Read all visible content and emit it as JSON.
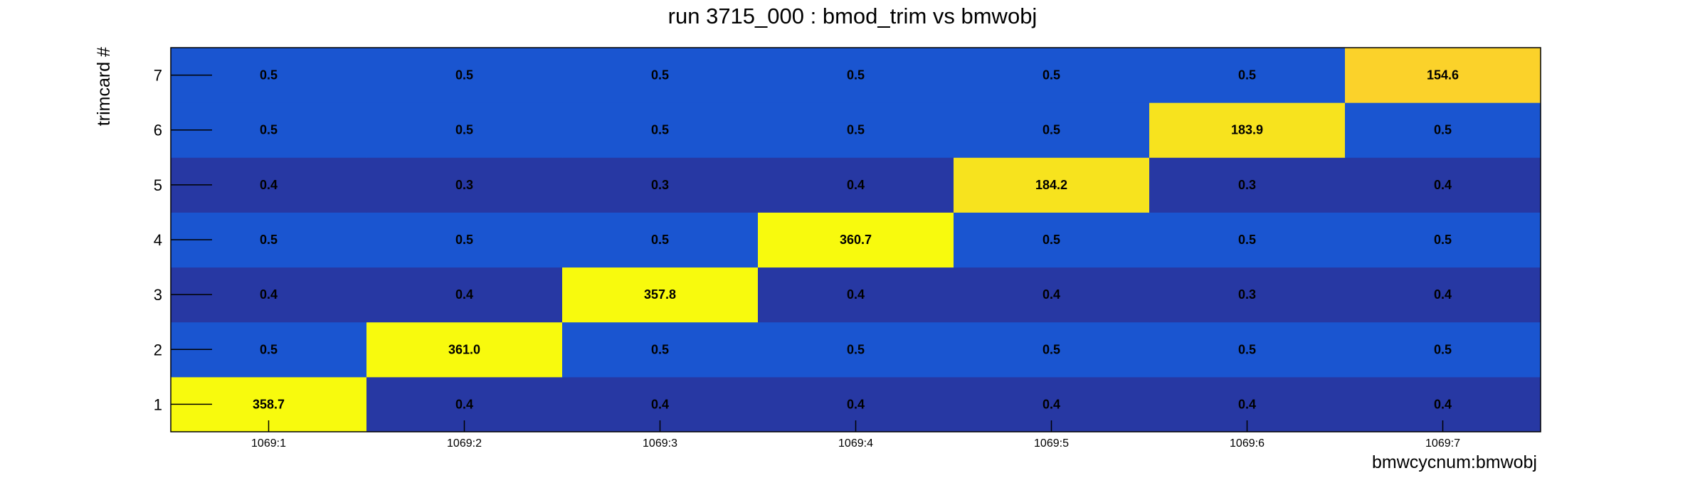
{
  "chart_data": {
    "type": "heatmap",
    "title": "run 3715_000 : bmod_trim vs bmwobj",
    "xlabel": "bmwcycnum:bmwobj",
    "ylabel": "trimcard #",
    "x_categories": [
      "1069:1",
      "1069:2",
      "1069:3",
      "1069:4",
      "1069:5",
      "1069:6",
      "1069:7"
    ],
    "y_categories": [
      "1",
      "2",
      "3",
      "4",
      "5",
      "6",
      "7"
    ],
    "values": [
      [
        358.7,
        0.4,
        0.4,
        0.4,
        0.4,
        0.4,
        0.4
      ],
      [
        0.5,
        361.0,
        0.5,
        0.5,
        0.5,
        0.5,
        0.5
      ],
      [
        0.4,
        0.4,
        357.8,
        0.4,
        0.4,
        0.3,
        0.4
      ],
      [
        0.5,
        0.5,
        0.5,
        360.7,
        0.5,
        0.5,
        0.5
      ],
      [
        0.4,
        0.3,
        0.3,
        0.4,
        184.2,
        0.3,
        0.4
      ],
      [
        0.5,
        0.5,
        0.5,
        0.5,
        0.5,
        183.9,
        0.5
      ],
      [
        0.5,
        0.5,
        0.5,
        0.5,
        0.5,
        0.5,
        154.6
      ]
    ],
    "colors": {
      "low": "#2738a3",
      "low_mid": "#1a55d0",
      "mid": "#fbd22a",
      "high_mid": "#f7e31e",
      "high": "#f8fa0d"
    },
    "grid": false
  }
}
